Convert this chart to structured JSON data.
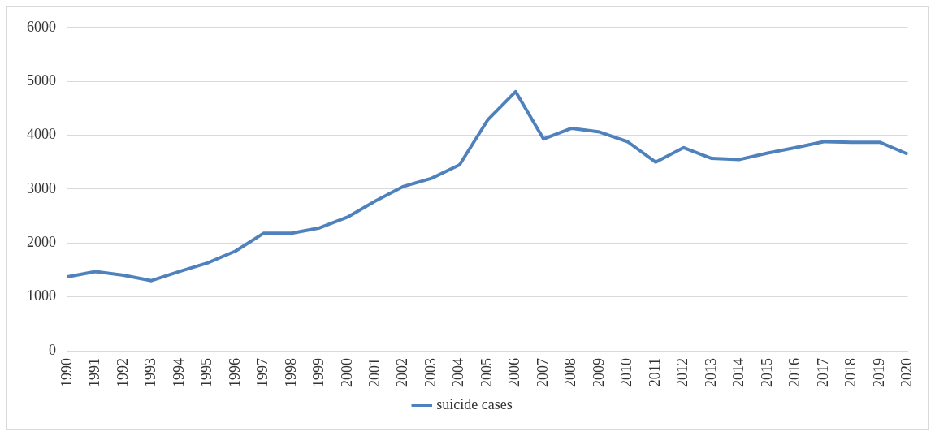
{
  "chart_data": {
    "type": "line",
    "categories": [
      "1990",
      "1991",
      "1992",
      "1993",
      "1994",
      "1995",
      "1996",
      "1997",
      "1998",
      "1999",
      "2000",
      "2001",
      "2002",
      "2003",
      "2004",
      "2005",
      "2006",
      "2007",
      "2008",
      "2009",
      "2010",
      "2011",
      "2012",
      "2013",
      "2014",
      "2015",
      "2016",
      "2017",
      "2018",
      "2019",
      "2020"
    ],
    "series": [
      {
        "name": "suicide cases",
        "color": "#4f81bd",
        "values": [
          1370,
          1470,
          1400,
          1300,
          1470,
          1630,
          1850,
          2180,
          2180,
          2280,
          2480,
          2780,
          3050,
          3200,
          3450,
          4280,
          4810,
          3930,
          4130,
          4060,
          3880,
          3500,
          3770,
          3570,
          3550,
          3670,
          3770,
          3880,
          3870,
          3870,
          3650
        ]
      }
    ],
    "ylim": [
      0,
      6000
    ],
    "yticks": [
      0,
      1000,
      2000,
      3000,
      4000,
      5000,
      6000
    ],
    "grid": "y",
    "legend": "bottom",
    "marker": "none",
    "line_style": "solid"
  }
}
